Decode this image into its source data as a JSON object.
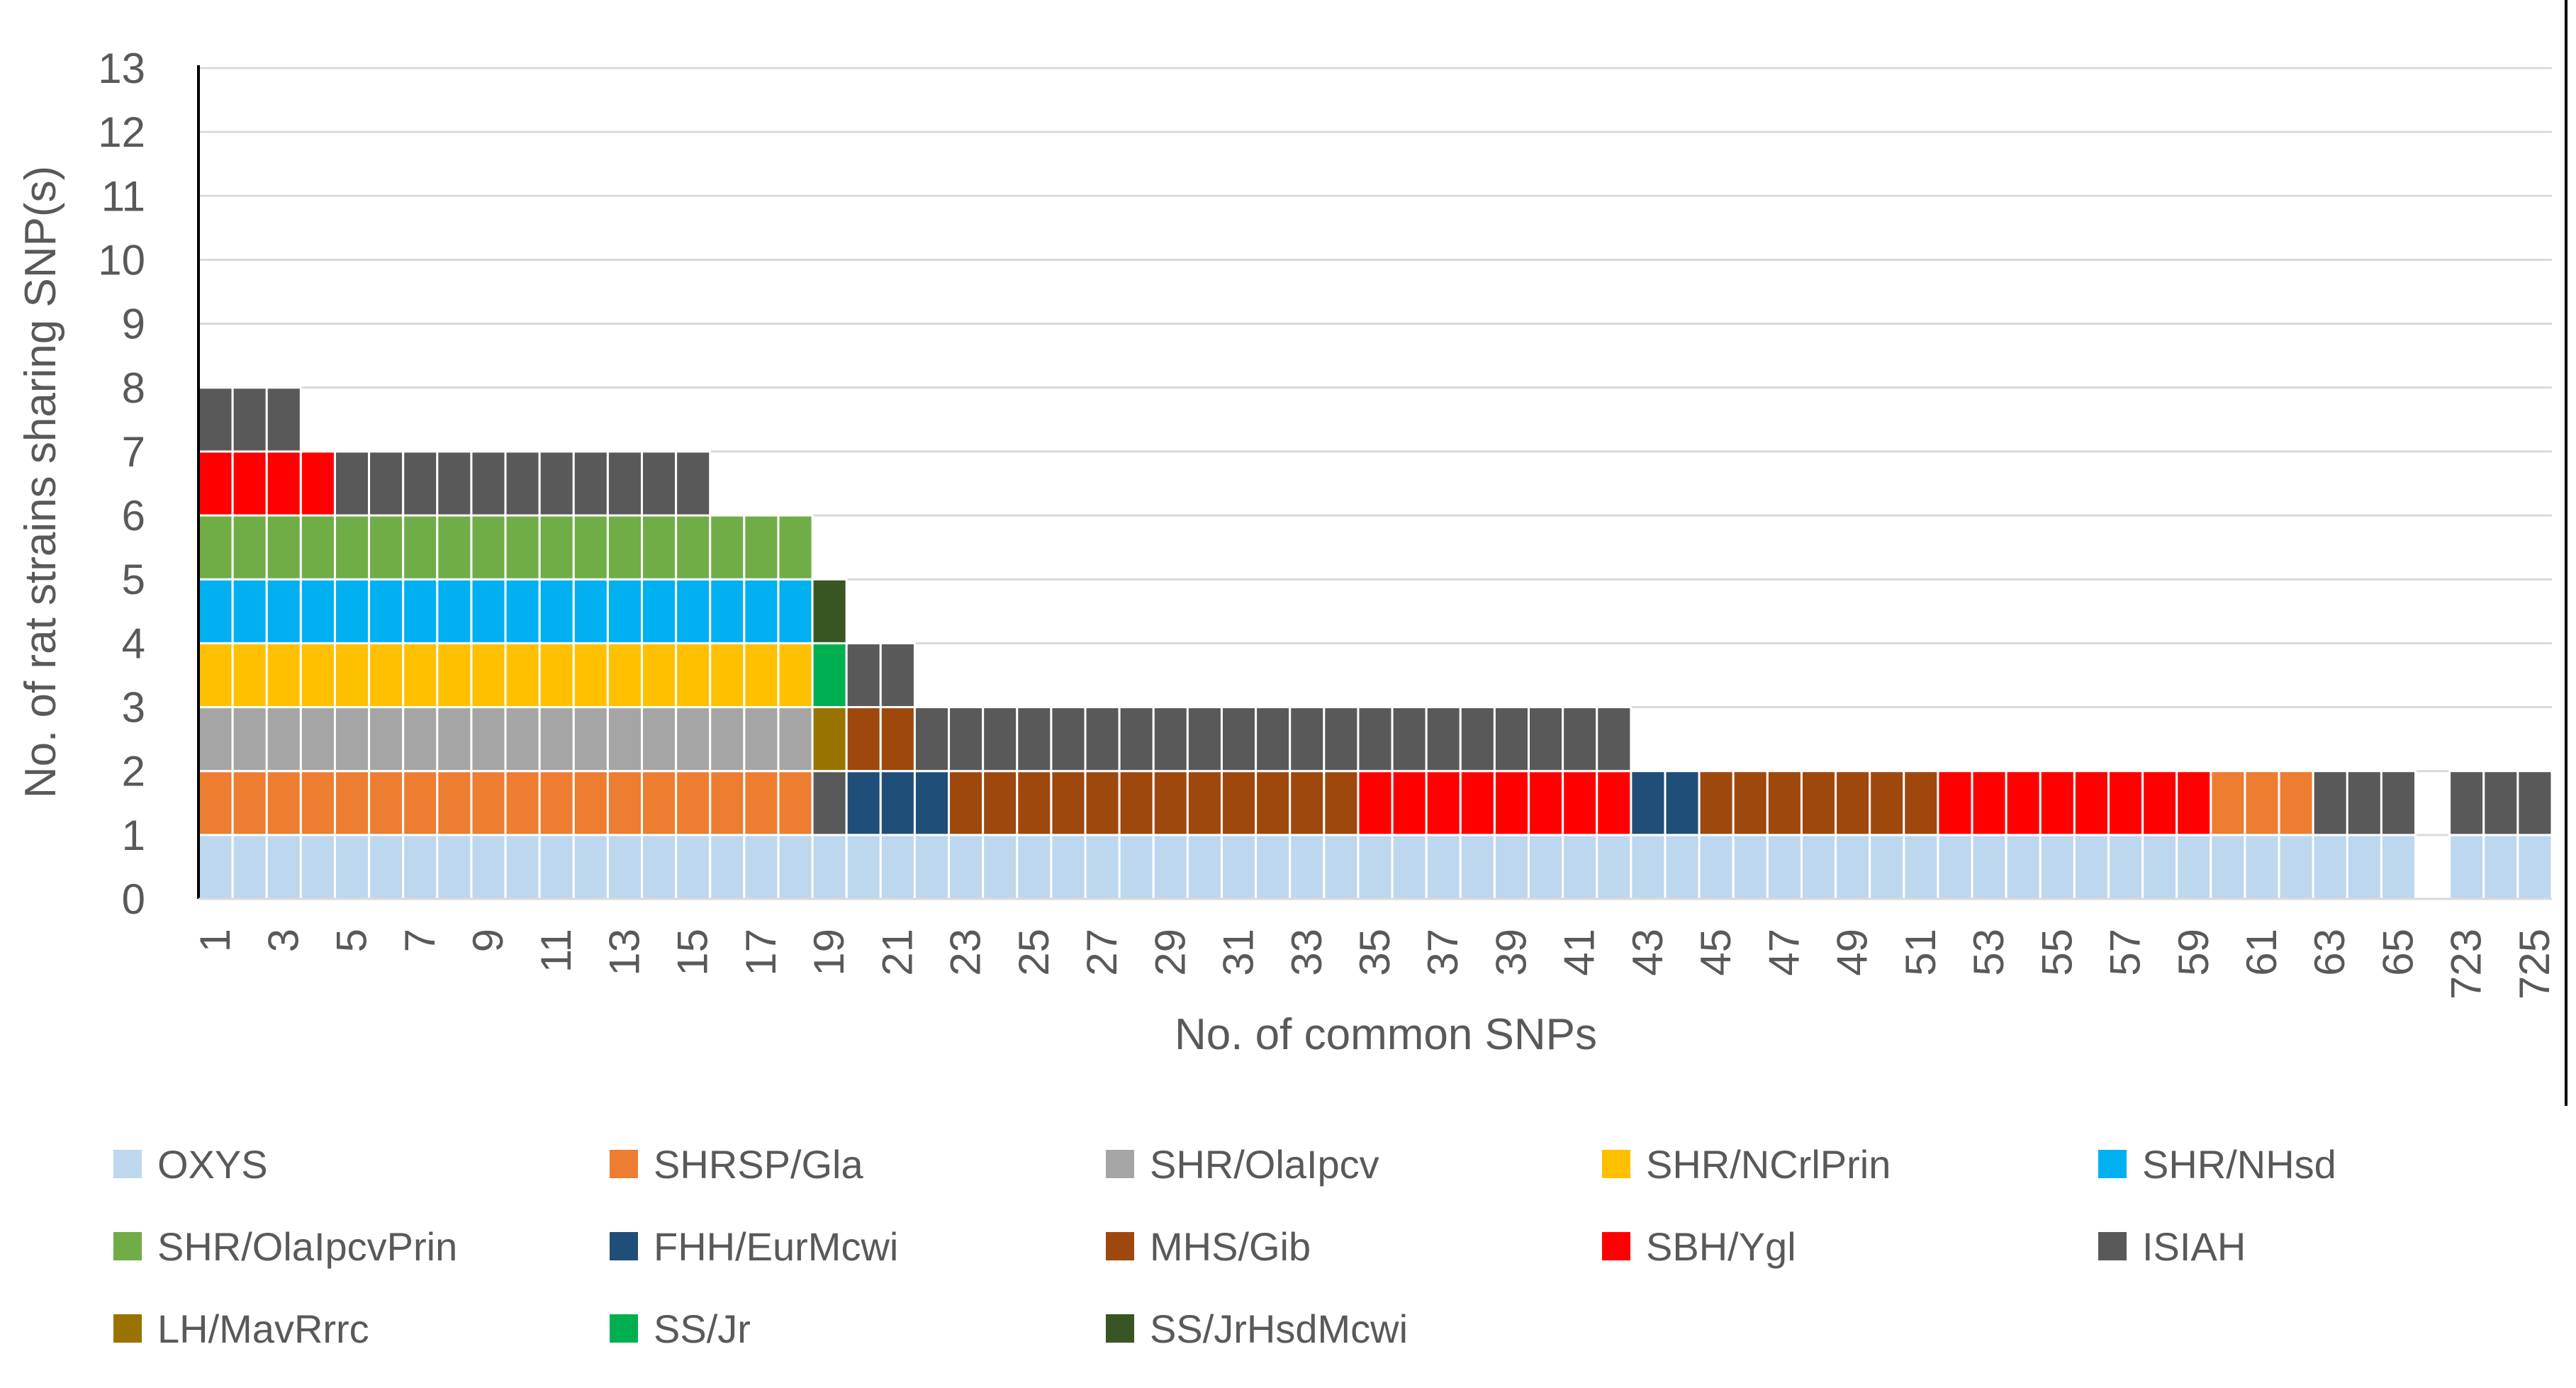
{
  "chart_data": {
    "type": "stacked-bar",
    "title": "",
    "xlabel": "No. of common SNPs",
    "ylabel": "No. of rat strains sharing SNP(s)",
    "ylim": [
      0,
      13
    ],
    "yticks": [
      0,
      1,
      2,
      3,
      4,
      5,
      6,
      7,
      8,
      9,
      10,
      11,
      12,
      13
    ],
    "grid": true,
    "legend_position": "bottom",
    "categories": [
      "1",
      "2",
      "3",
      "4",
      "5",
      "6",
      "7",
      "8",
      "9",
      "10",
      "11",
      "12",
      "13",
      "14",
      "15",
      "16",
      "17",
      "18",
      "19",
      "20",
      "21",
      "22",
      "23",
      "24",
      "25",
      "26",
      "27",
      "28",
      "29",
      "30",
      "31",
      "32",
      "33",
      "34",
      "35",
      "36",
      "37",
      "38",
      "39",
      "40",
      "41",
      "42",
      "43",
      "44",
      "45",
      "46",
      "47",
      "48",
      "49",
      "50",
      "51",
      "52",
      "53",
      "54",
      "55",
      "56",
      "57",
      "58",
      "59",
      "60",
      "61",
      "62",
      "63",
      "64",
      "65",
      "",
      "723",
      "724",
      "725"
    ],
    "tick_labels": [
      "1",
      "3",
      "5",
      "7",
      "9",
      "11",
      "13",
      "15",
      "17",
      "19",
      "21",
      "23",
      "25",
      "27",
      "29",
      "31",
      "33",
      "35",
      "37",
      "39",
      "41",
      "43",
      "45",
      "47",
      "49",
      "51",
      "53",
      "55",
      "57",
      "59",
      "61",
      "63",
      "65",
      "723",
      "725"
    ],
    "tick_label_indices": [
      0,
      2,
      4,
      6,
      8,
      10,
      12,
      14,
      16,
      18,
      20,
      22,
      24,
      26,
      28,
      30,
      32,
      34,
      36,
      38,
      40,
      42,
      44,
      46,
      48,
      50,
      52,
      54,
      56,
      58,
      60,
      62,
      64,
      66,
      68
    ],
    "strains": [
      {
        "name": "OXYS",
        "color": "#bdd7ee"
      },
      {
        "name": "SHRSP/Gla",
        "color": "#ed7d31"
      },
      {
        "name": "SHR/OlaIpcv",
        "color": "#a5a5a5"
      },
      {
        "name": "SHR/NCrlPrin",
        "color": "#ffc000"
      },
      {
        "name": "SHR/NHsd",
        "color": "#00b0f0"
      },
      {
        "name": "SHR/OlaIpcvPrin",
        "color": "#70ad47"
      },
      {
        "name": "FHH/EurMcwi",
        "color": "#1f4e79"
      },
      {
        "name": "MHS/Gib",
        "color": "#9e480e"
      },
      {
        "name": "SBH/Ygl",
        "color": "#ff0000"
      },
      {
        "name": "ISIAH",
        "color": "#595959"
      },
      {
        "name": "LH/MavRrrc",
        "color": "#997300"
      },
      {
        "name": "SS/Jr",
        "color": "#00b050"
      },
      {
        "name": "SS/JrHsdMcwi",
        "color": "#375623"
      }
    ],
    "stacks": [
      [
        "OXYS",
        "SHRSP/Gla",
        "SHR/OlaIpcv",
        "SHR/NCrlPrin",
        "SHR/NHsd",
        "SHR/OlaIpcvPrin",
        "SBH/Ygl",
        "ISIAH"
      ],
      [
        "OXYS",
        "SHRSP/Gla",
        "SHR/OlaIpcv",
        "SHR/NCrlPrin",
        "SHR/NHsd",
        "SHR/OlaIpcvPrin",
        "SBH/Ygl",
        "ISIAH"
      ],
      [
        "OXYS",
        "SHRSP/Gla",
        "SHR/OlaIpcv",
        "SHR/NCrlPrin",
        "SHR/NHsd",
        "SHR/OlaIpcvPrin",
        "SBH/Ygl",
        "ISIAH"
      ],
      [
        "OXYS",
        "SHRSP/Gla",
        "SHR/OlaIpcv",
        "SHR/NCrlPrin",
        "SHR/NHsd",
        "SHR/OlaIpcvPrin",
        "SBH/Ygl"
      ],
      [
        "OXYS",
        "SHRSP/Gla",
        "SHR/OlaIpcv",
        "SHR/NCrlPrin",
        "SHR/NHsd",
        "SHR/OlaIpcvPrin",
        "ISIAH"
      ],
      [
        "OXYS",
        "SHRSP/Gla",
        "SHR/OlaIpcv",
        "SHR/NCrlPrin",
        "SHR/NHsd",
        "SHR/OlaIpcvPrin",
        "ISIAH"
      ],
      [
        "OXYS",
        "SHRSP/Gla",
        "SHR/OlaIpcv",
        "SHR/NCrlPrin",
        "SHR/NHsd",
        "SHR/OlaIpcvPrin",
        "ISIAH"
      ],
      [
        "OXYS",
        "SHRSP/Gla",
        "SHR/OlaIpcv",
        "SHR/NCrlPrin",
        "SHR/NHsd",
        "SHR/OlaIpcvPrin",
        "ISIAH"
      ],
      [
        "OXYS",
        "SHRSP/Gla",
        "SHR/OlaIpcv",
        "SHR/NCrlPrin",
        "SHR/NHsd",
        "SHR/OlaIpcvPrin",
        "ISIAH"
      ],
      [
        "OXYS",
        "SHRSP/Gla",
        "SHR/OlaIpcv",
        "SHR/NCrlPrin",
        "SHR/NHsd",
        "SHR/OlaIpcvPrin",
        "ISIAH"
      ],
      [
        "OXYS",
        "SHRSP/Gla",
        "SHR/OlaIpcv",
        "SHR/NCrlPrin",
        "SHR/NHsd",
        "SHR/OlaIpcvPrin",
        "ISIAH"
      ],
      [
        "OXYS",
        "SHRSP/Gla",
        "SHR/OlaIpcv",
        "SHR/NCrlPrin",
        "SHR/NHsd",
        "SHR/OlaIpcvPrin",
        "ISIAH"
      ],
      [
        "OXYS",
        "SHRSP/Gla",
        "SHR/OlaIpcv",
        "SHR/NCrlPrin",
        "SHR/NHsd",
        "SHR/OlaIpcvPrin",
        "ISIAH"
      ],
      [
        "OXYS",
        "SHRSP/Gla",
        "SHR/OlaIpcv",
        "SHR/NCrlPrin",
        "SHR/NHsd",
        "SHR/OlaIpcvPrin",
        "ISIAH"
      ],
      [
        "OXYS",
        "SHRSP/Gla",
        "SHR/OlaIpcv",
        "SHR/NCrlPrin",
        "SHR/NHsd",
        "SHR/OlaIpcvPrin",
        "ISIAH"
      ],
      [
        "OXYS",
        "SHRSP/Gla",
        "SHR/OlaIpcv",
        "SHR/NCrlPrin",
        "SHR/NHsd",
        "SHR/OlaIpcvPrin"
      ],
      [
        "OXYS",
        "SHRSP/Gla",
        "SHR/OlaIpcv",
        "SHR/NCrlPrin",
        "SHR/NHsd",
        "SHR/OlaIpcvPrin"
      ],
      [
        "OXYS",
        "SHRSP/Gla",
        "SHR/OlaIpcv",
        "SHR/NCrlPrin",
        "SHR/NHsd",
        "SHR/OlaIpcvPrin"
      ],
      [
        "OXYS",
        "ISIAH",
        "LH/MavRrrc",
        "SS/Jr",
        "SS/JrHsdMcwi"
      ],
      [
        "OXYS",
        "FHH/EurMcwi",
        "MHS/Gib",
        "ISIAH"
      ],
      [
        "OXYS",
        "FHH/EurMcwi",
        "MHS/Gib",
        "ISIAH"
      ],
      [
        "OXYS",
        "FHH/EurMcwi",
        "ISIAH"
      ],
      [
        "OXYS",
        "MHS/Gib",
        "ISIAH"
      ],
      [
        "OXYS",
        "MHS/Gib",
        "ISIAH"
      ],
      [
        "OXYS",
        "MHS/Gib",
        "ISIAH"
      ],
      [
        "OXYS",
        "MHS/Gib",
        "ISIAH"
      ],
      [
        "OXYS",
        "MHS/Gib",
        "ISIAH"
      ],
      [
        "OXYS",
        "MHS/Gib",
        "ISIAH"
      ],
      [
        "OXYS",
        "MHS/Gib",
        "ISIAH"
      ],
      [
        "OXYS",
        "MHS/Gib",
        "ISIAH"
      ],
      [
        "OXYS",
        "MHS/Gib",
        "ISIAH"
      ],
      [
        "OXYS",
        "MHS/Gib",
        "ISIAH"
      ],
      [
        "OXYS",
        "MHS/Gib",
        "ISIAH"
      ],
      [
        "OXYS",
        "MHS/Gib",
        "ISIAH"
      ],
      [
        "OXYS",
        "SBH/Ygl",
        "ISIAH"
      ],
      [
        "OXYS",
        "SBH/Ygl",
        "ISIAH"
      ],
      [
        "OXYS",
        "SBH/Ygl",
        "ISIAH"
      ],
      [
        "OXYS",
        "SBH/Ygl",
        "ISIAH"
      ],
      [
        "OXYS",
        "SBH/Ygl",
        "ISIAH"
      ],
      [
        "OXYS",
        "SBH/Ygl",
        "ISIAH"
      ],
      [
        "OXYS",
        "SBH/Ygl",
        "ISIAH"
      ],
      [
        "OXYS",
        "SBH/Ygl",
        "ISIAH"
      ],
      [
        "OXYS",
        "FHH/EurMcwi"
      ],
      [
        "OXYS",
        "FHH/EurMcwi"
      ],
      [
        "OXYS",
        "MHS/Gib"
      ],
      [
        "OXYS",
        "MHS/Gib"
      ],
      [
        "OXYS",
        "MHS/Gib"
      ],
      [
        "OXYS",
        "MHS/Gib"
      ],
      [
        "OXYS",
        "MHS/Gib"
      ],
      [
        "OXYS",
        "MHS/Gib"
      ],
      [
        "OXYS",
        "MHS/Gib"
      ],
      [
        "OXYS",
        "SBH/Ygl"
      ],
      [
        "OXYS",
        "SBH/Ygl"
      ],
      [
        "OXYS",
        "SBH/Ygl"
      ],
      [
        "OXYS",
        "SBH/Ygl"
      ],
      [
        "OXYS",
        "SBH/Ygl"
      ],
      [
        "OXYS",
        "SBH/Ygl"
      ],
      [
        "OXYS",
        "SBH/Ygl"
      ],
      [
        "OXYS",
        "SBH/Ygl"
      ],
      [
        "OXYS",
        "SHRSP/Gla"
      ],
      [
        "OXYS",
        "SHRSP/Gla"
      ],
      [
        "OXYS",
        "SHRSP/Gla"
      ],
      [
        "OXYS",
        "ISIAH"
      ],
      [
        "OXYS",
        "ISIAH"
      ],
      [
        "OXYS",
        "ISIAH"
      ],
      [],
      [
        "OXYS",
        "ISIAH"
      ],
      [
        "OXYS",
        "ISIAH"
      ],
      [
        "OXYS",
        "ISIAH"
      ]
    ]
  },
  "legend": {
    "items": [
      "OXYS",
      "SHRSP/Gla",
      "SHR/OlaIpcv",
      "SHR/NCrlPrin",
      "SHR/NHsd",
      "SHR/OlaIpcvPrin",
      "FHH/EurMcwi",
      "MHS/Gib",
      "SBH/Ygl",
      "ISIAH",
      "LH/MavRrrc",
      "SS/Jr",
      " SS/JrHsdMcwi"
    ]
  }
}
